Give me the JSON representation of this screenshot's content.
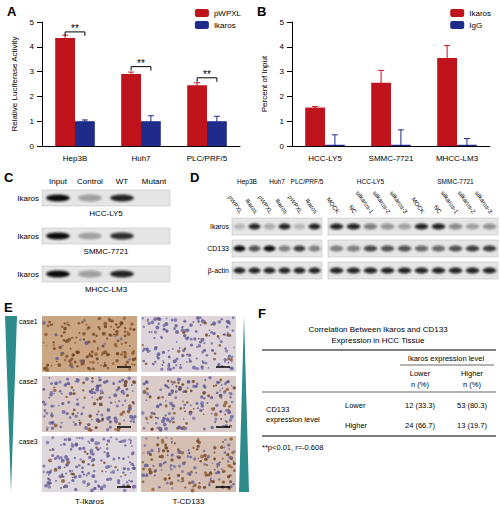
{
  "chart_data": [
    {
      "panel": "A",
      "type": "bar",
      "y_label": "Relative Luciferase Activity",
      "categories": [
        "Hep3B",
        "Huh7",
        "PLC/PRF/5"
      ],
      "series": [
        {
          "name": "pWPXL",
          "color": "#c0141c",
          "values": [
            4.35,
            2.9,
            2.45
          ],
          "errors": [
            0.12,
            0.08,
            0.1
          ]
        },
        {
          "name": "Ikaros",
          "color": "#1f2b8a",
          "values": [
            1,
            1,
            1
          ],
          "errors": [
            0.05,
            0.22,
            0.2
          ]
        }
      ],
      "ylim": [
        0,
        5
      ],
      "yticks": [
        0,
        1,
        2,
        3,
        4,
        5
      ],
      "grid": false,
      "legend": "top-right",
      "annotations": [
        {
          "text": "**",
          "category": "Hep3B",
          "y": 4.6
        },
        {
          "text": "**",
          "category": "Huh7",
          "y": 3.2
        },
        {
          "text": "**",
          "category": "PLC/PRF/5",
          "y": 2.75
        }
      ]
    },
    {
      "panel": "B",
      "type": "bar",
      "y_label": "Percent of Input",
      "categories": [
        "HCC-LY5",
        "SMMC-7721",
        "MHCC-LM3"
      ],
      "series": [
        {
          "name": "Ikaros",
          "color": "#c0141c",
          "values": [
            1.55,
            2.55,
            3.55
          ],
          "errors": [
            0.04,
            0.5,
            0.5
          ]
        },
        {
          "name": "IgG",
          "color": "#1f2b8a",
          "values": [
            0.05,
            0.05,
            0.05
          ],
          "errors": [
            0.4,
            0.6,
            0.25
          ]
        }
      ],
      "ylim": [
        0,
        5
      ],
      "yticks": [
        0,
        1,
        2,
        3,
        4,
        5
      ],
      "grid": false,
      "legend": "top-right",
      "annotations": []
    }
  ],
  "panels": {
    "C": {
      "panel": "C",
      "columns": [
        "Input",
        "Control",
        "WT",
        "Mutant"
      ],
      "rows": [
        {
          "protein": "Ikaros",
          "cell_line": "HCC-LY5",
          "bands": [
            1,
            0.35,
            0.9,
            0
          ]
        },
        {
          "protein": "Ikaros",
          "cell_line": "SMMC-7721",
          "bands": [
            1,
            0.3,
            0.85,
            0
          ]
        },
        {
          "protein": "Ikaros",
          "cell_line": "MHCC-LM3",
          "bands": [
            1,
            0.35,
            0.9,
            0
          ]
        }
      ]
    },
    "D": {
      "panel": "D",
      "row_labels": [
        "Ikaros",
        "CD133",
        "β-actin"
      ],
      "blots": [
        {
          "groups": [
            {
              "cell_line": "Hep3B",
              "lanes": [
                "pWPXL",
                "Ikaros"
              ]
            },
            {
              "cell_line": "Huh7",
              "lanes": [
                "pWPXL",
                "Ikaros"
              ]
            },
            {
              "cell_line": "PLC/PRF/5",
              "lanes": [
                "pWPXL",
                "Ikaros"
              ]
            }
          ],
          "bands": [
            [
              0.2,
              0.9,
              0.25,
              0.9,
              0.2,
              0.9
            ],
            [
              1,
              0.7,
              1,
              0.5,
              0.8,
              0.5
            ],
            [
              0.9,
              0.9,
              0.9,
              0.9,
              0.9,
              0.9
            ]
          ]
        },
        {
          "groups": [
            {
              "cell_line": "HCC-LY5",
              "lanes": [
                "MOCK",
                "NC",
                "siIkaros-1",
                "siIkaros-2",
                "siIkaros-3"
              ]
            },
            {
              "cell_line": "SMMC-7721",
              "lanes": [
                "MOCK",
                "NC",
                "siIkaros-1",
                "siIkaros-2",
                "siIkaros-3"
              ]
            }
          ],
          "bands": [
            [
              0.9,
              0.9,
              0.5,
              0.4,
              0.3,
              0.9,
              0.9,
              0.45,
              0.3,
              0.4
            ],
            [
              0.5,
              0.5,
              0.75,
              0.7,
              0.7,
              0.6,
              0.6,
              0.7,
              0.8,
              0.8
            ],
            [
              0.9,
              0.9,
              0.9,
              0.9,
              0.9,
              0.9,
              0.9,
              0.9,
              0.9,
              0.9
            ]
          ]
        }
      ]
    },
    "E": {
      "panel": "E",
      "columns": [
        "T-Ikaros",
        "T-CD133"
      ],
      "cases": [
        "case1",
        "case2",
        "case3"
      ],
      "staining": [
        [
          0.9,
          0.15
        ],
        [
          0.3,
          0.3
        ],
        [
          0.12,
          0.5
        ]
      ]
    },
    "F": {
      "panel": "F",
      "title_lines": [
        "Correlation Between Ikaros and CD133",
        "Expression in HCC Tissue"
      ],
      "column_header": "Ikaros expression level",
      "columns": [
        "Lower",
        "Higher"
      ],
      "unit_header": "n (%)",
      "row_header_lines": [
        "CD133",
        "expression level"
      ],
      "rows": [
        {
          "label": "Lower",
          "cells": [
            "12 (33.3)",
            "53 (80.3)"
          ]
        },
        {
          "label": "Higher",
          "cells": [
            "24 (66.7)",
            "13 (19.7)"
          ]
        }
      ],
      "footnote": "**p<0.01, r=-0.608"
    }
  }
}
